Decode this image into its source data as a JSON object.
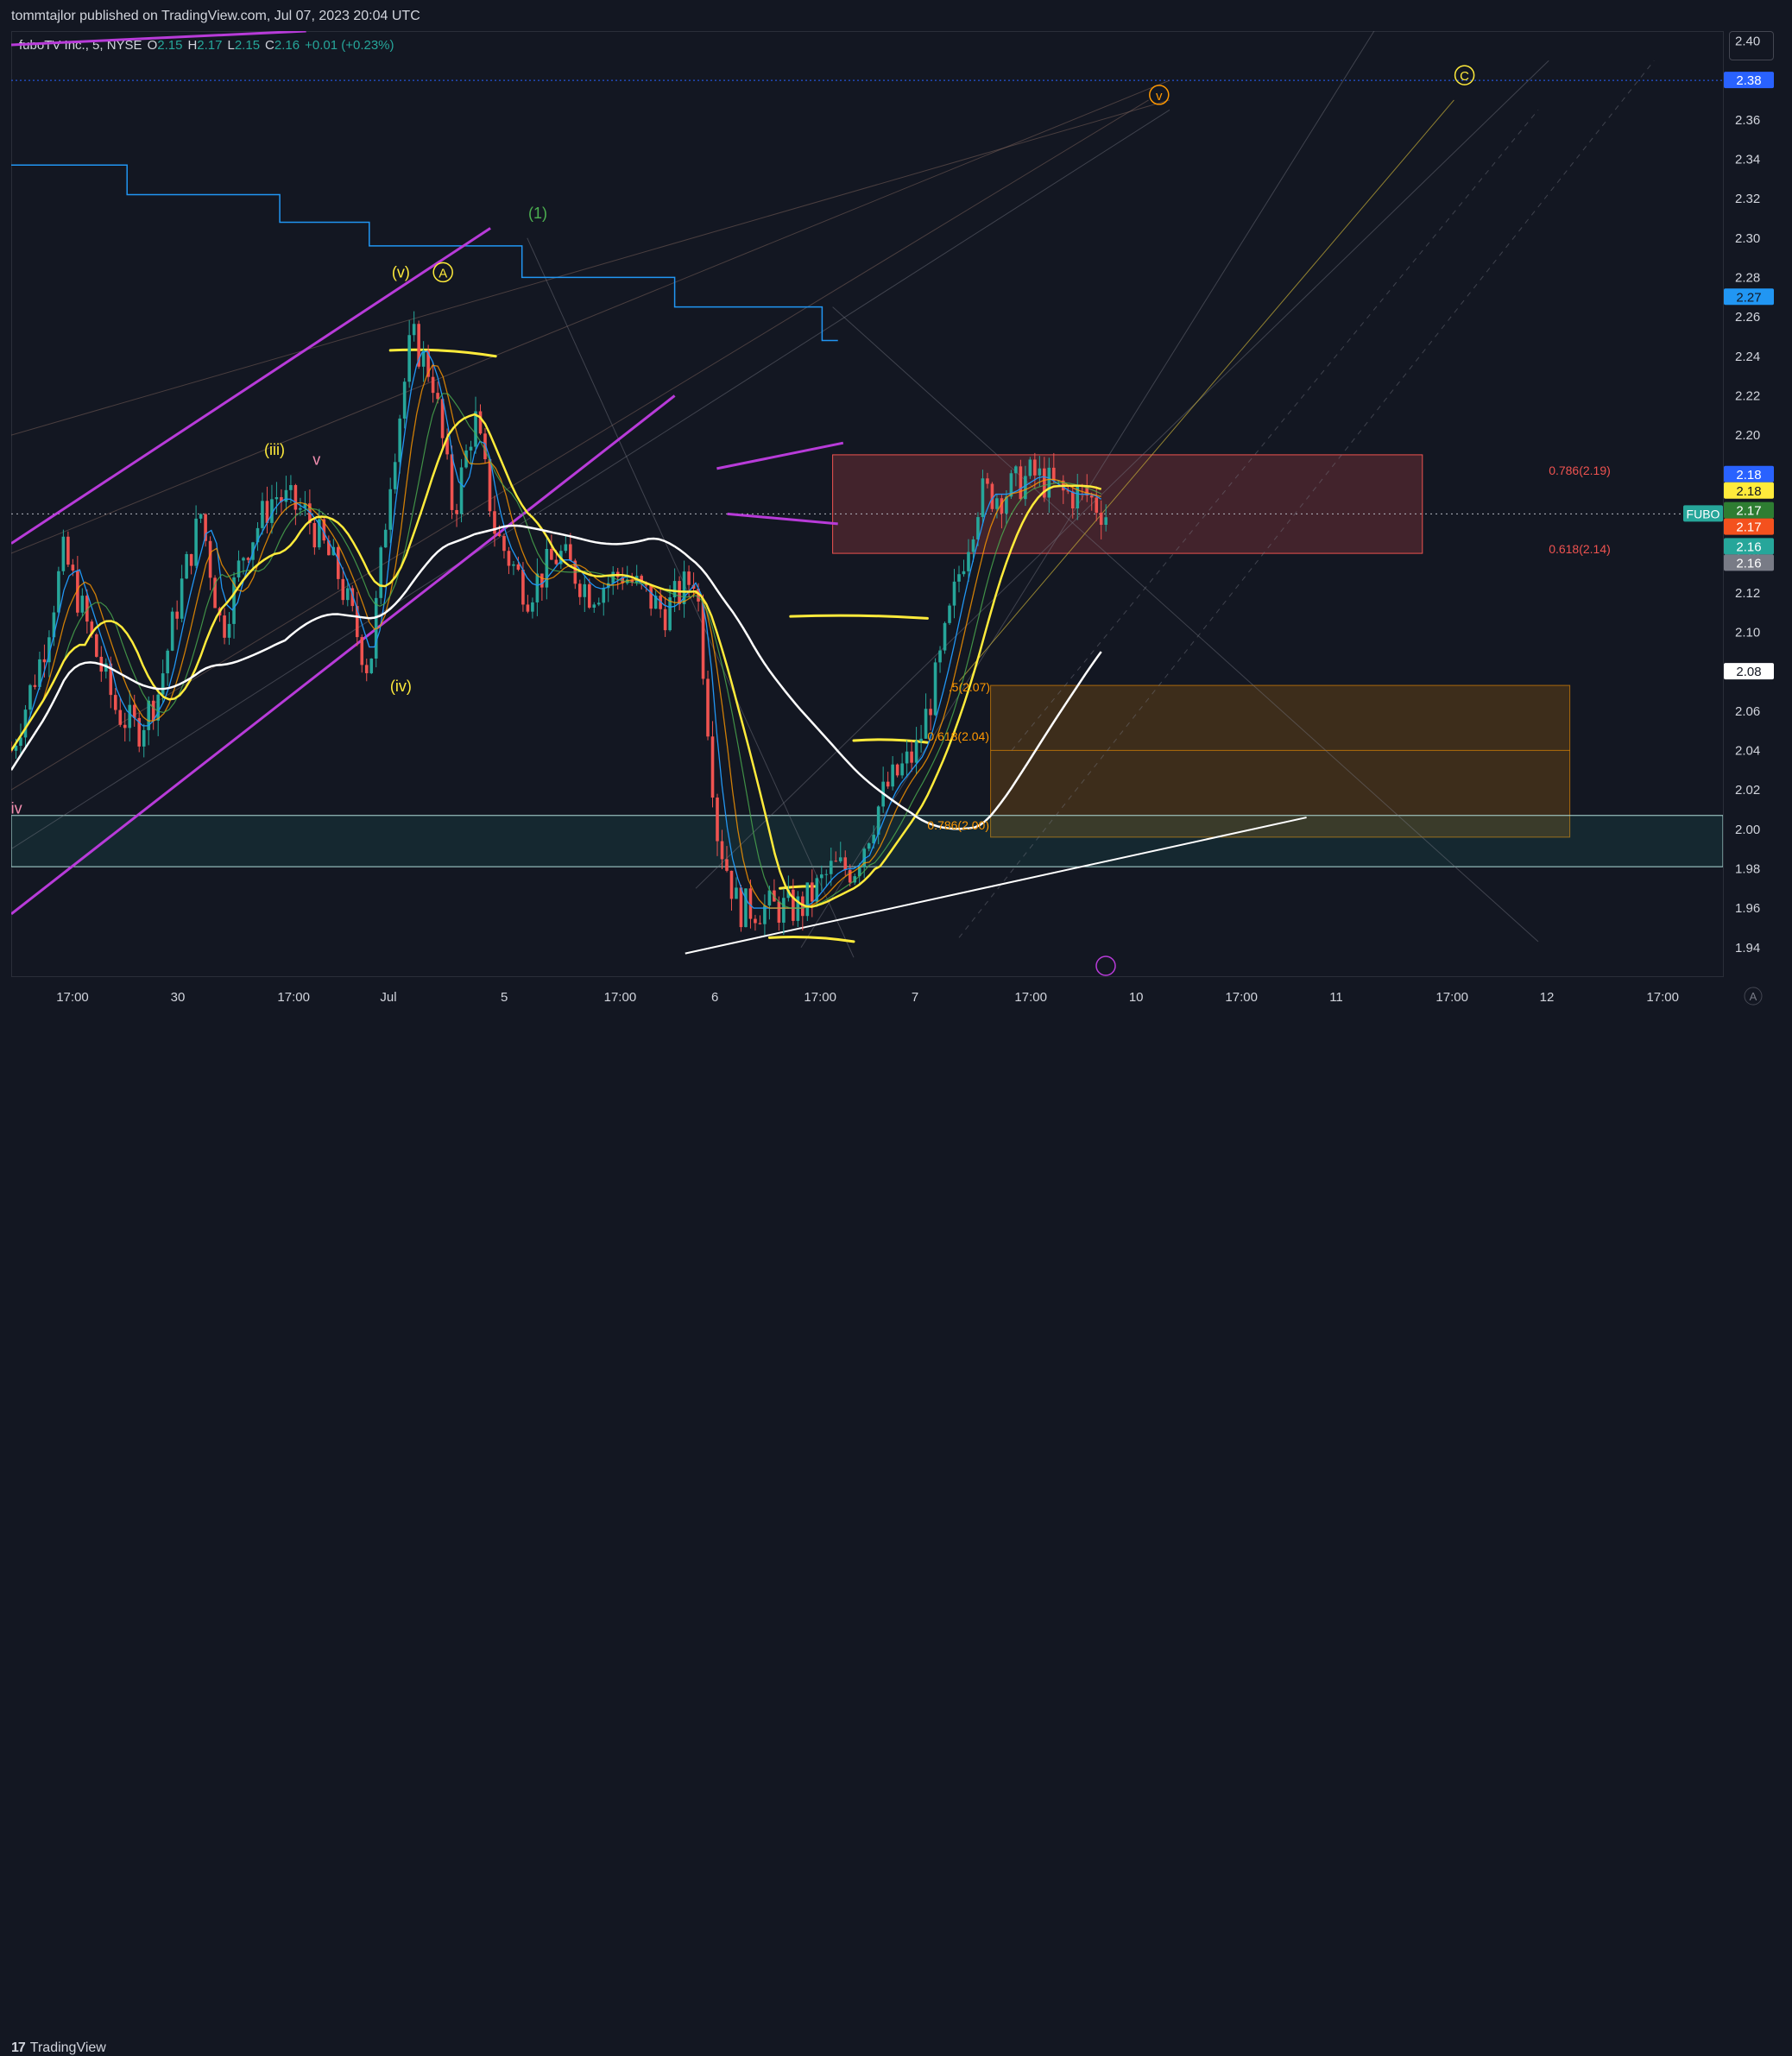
{
  "header": {
    "published_text": "tommtajlor published on TradingView.com, Jul 07, 2023 20:04 UTC"
  },
  "legend": {
    "symbol": "fuboTV Inc., 5, NYSE",
    "open_label": "O",
    "open": "2.15",
    "high_label": "H",
    "high": "2.17",
    "low_label": "L",
    "low": "2.15",
    "close_label": "C",
    "close": "2.16",
    "change": "+0.01 (+0.23%)"
  },
  "colors": {
    "background": "#131722",
    "up": "#26a69a",
    "down": "#ef5350",
    "accent_blue": "#2962ff",
    "magenta": "#b83bd9",
    "yellow": "#ffeb3b"
  },
  "price_axis": {
    "ticks": [
      "2.40",
      "2.38",
      "2.36",
      "2.34",
      "2.32",
      "2.30",
      "2.28",
      "2.26",
      "2.24",
      "2.22",
      "2.20",
      "2.18",
      "2.16",
      "2.14",
      "2.12",
      "2.10",
      "2.08",
      "2.06",
      "2.04",
      "2.02",
      "2.00",
      "1.98",
      "1.96",
      "1.94"
    ],
    "badges": [
      {
        "value": "2.38",
        "bg": "#2962ff",
        "fg": "#ffffff"
      },
      {
        "value": "2.27",
        "bg": "#2196f3",
        "fg": "#131722"
      },
      {
        "value": "2.18",
        "bg": "#2962ff",
        "fg": "#ffffff"
      },
      {
        "value": "2.18",
        "bg": "#ffeb3b",
        "fg": "#131722"
      },
      {
        "value": "2.17",
        "bg": "#2e7d32",
        "fg": "#ffffff"
      },
      {
        "value": "2.17",
        "bg": "#f4511e",
        "fg": "#ffffff"
      },
      {
        "value": "2.16",
        "bg": "#26a69a",
        "fg": "#ffffff"
      },
      {
        "value": "2.16",
        "bg": "#787b86",
        "fg": "#ffffff"
      },
      {
        "value": "2.08",
        "bg": "#ffffff",
        "fg": "#131722"
      }
    ],
    "symbol_tag": "FUBO"
  },
  "time_axis": {
    "labels": [
      {
        "t": 0.5,
        "label": "17:00"
      },
      {
        "t": 1.5,
        "label": "30"
      },
      {
        "t": 2.6,
        "label": "17:00"
      },
      {
        "t": 3.5,
        "label": "Jul"
      },
      {
        "t": 4.6,
        "label": "5"
      },
      {
        "t": 5.7,
        "label": "17:00"
      },
      {
        "t": 6.6,
        "label": "6"
      },
      {
        "t": 7.6,
        "label": "17:00"
      },
      {
        "t": 8.5,
        "label": "7"
      },
      {
        "t": 9.6,
        "label": "17:00"
      },
      {
        "t": 10.6,
        "label": "10"
      },
      {
        "t": 11.6,
        "label": "17:00"
      },
      {
        "t": 12.5,
        "label": "11"
      },
      {
        "t": 13.6,
        "label": "17:00"
      },
      {
        "t": 14.5,
        "label": "12"
      },
      {
        "t": 15.6,
        "label": "17:00"
      }
    ],
    "auto_label": "A"
  },
  "annotations": {
    "wave_labels": [
      {
        "text": "(v)",
        "t": 3.7,
        "p": 2.28,
        "color": "#ffeb3b"
      },
      {
        "text": "A",
        "t": 4.1,
        "p": 2.28,
        "color": "#ffeb3b",
        "circle": true
      },
      {
        "text": "(1)",
        "t": 5.0,
        "p": 2.31,
        "color": "#4caf50"
      },
      {
        "text": "(iii)",
        "t": 2.5,
        "p": 2.19,
        "color": "#ffeb3b"
      },
      {
        "text": "v",
        "t": 2.9,
        "p": 2.185,
        "color": "#f48fb1"
      },
      {
        "text": "(iv)",
        "t": 3.7,
        "p": 2.07,
        "color": "#ffeb3b"
      },
      {
        "text": "iv",
        "t": 0.05,
        "p": 2.008,
        "color": "#f48fb1"
      },
      {
        "text": "v",
        "t": 10.9,
        "p": 2.37,
        "color": "#ff9800",
        "circle": true
      },
      {
        "text": "C",
        "t": 13.8,
        "p": 2.38,
        "color": "#ffeb3b",
        "circle": true
      }
    ],
    "fib_labels": [
      {
        "text": "0.786(2.19)",
        "t": 14.6,
        "p": 2.18,
        "color": "#ef5350"
      },
      {
        "text": "0.618(2.14)",
        "t": 14.6,
        "p": 2.14,
        "color": "#ef5350"
      },
      {
        "text": ".5(2.07)",
        "t": 8.9,
        "p": 2.07,
        "color": "#ff9800"
      },
      {
        "text": "0.618(2.04)",
        "t": 8.7,
        "p": 2.045,
        "color": "#ff9800"
      },
      {
        "text": "0.786(2.00)",
        "t": 8.7,
        "p": 2.0,
        "color": "#ff9800"
      }
    ]
  },
  "chart_data": {
    "type": "candlestick",
    "title": "fuboTV Inc., 5, NYSE",
    "ylim": [
      1.925,
      2.405
    ],
    "last_price": 2.16,
    "indicator_colors": [
      "#ffeb3b",
      "#ffffff",
      "#2196f3",
      "#ff9800",
      "#4caf50"
    ],
    "price_path": [
      [
        0,
        2.04
      ],
      [
        0.3,
        2.09
      ],
      [
        0.5,
        2.14
      ],
      [
        0.8,
        2.09
      ],
      [
        1.0,
        2.06
      ],
      [
        1.2,
        2.05
      ],
      [
        1.4,
        2.07
      ],
      [
        1.6,
        2.12
      ],
      [
        1.8,
        2.16
      ],
      [
        2.0,
        2.1
      ],
      [
        2.2,
        2.14
      ],
      [
        2.5,
        2.17
      ],
      [
        2.8,
        2.16
      ],
      [
        3.1,
        2.13
      ],
      [
        3.4,
        2.08
      ],
      [
        3.6,
        2.18
      ],
      [
        3.8,
        2.25
      ],
      [
        4.0,
        2.23
      ],
      [
        4.2,
        2.16
      ],
      [
        4.4,
        2.21
      ],
      [
        4.6,
        2.15
      ],
      [
        4.9,
        2.12
      ],
      [
        5.2,
        2.14
      ],
      [
        5.5,
        2.12
      ],
      [
        5.8,
        2.13
      ],
      [
        6.2,
        2.11
      ],
      [
        6.5,
        2.13
      ],
      [
        6.7,
        2.0
      ],
      [
        6.9,
        1.96
      ],
      [
        7.2,
        1.96
      ],
      [
        7.5,
        1.96
      ],
      [
        7.8,
        1.98
      ],
      [
        8.0,
        1.98
      ],
      [
        8.3,
        2.02
      ],
      [
        8.6,
        2.04
      ],
      [
        8.8,
        2.08
      ],
      [
        9.0,
        2.13
      ],
      [
        9.2,
        2.17
      ],
      [
        9.4,
        2.17
      ],
      [
        9.7,
        2.18
      ],
      [
        10.0,
        2.17
      ],
      [
        10.2,
        2.17
      ],
      [
        10.4,
        2.16
      ]
    ]
  }
}
